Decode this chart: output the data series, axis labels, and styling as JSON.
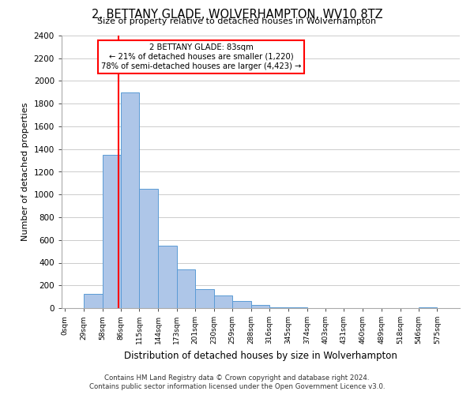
{
  "title": "2, BETTANY GLADE, WOLVERHAMPTON, WV10 8TZ",
  "subtitle": "Size of property relative to detached houses in Wolverhampton",
  "xlabel": "Distribution of detached houses by size in Wolverhampton",
  "ylabel": "Number of detached properties",
  "bar_labels": [
    "0sqm",
    "29sqm",
    "58sqm",
    "86sqm",
    "115sqm",
    "144sqm",
    "173sqm",
    "201sqm",
    "230sqm",
    "259sqm",
    "288sqm",
    "316sqm",
    "345sqm",
    "374sqm",
    "403sqm",
    "431sqm",
    "460sqm",
    "489sqm",
    "518sqm",
    "546sqm",
    "575sqm"
  ],
  "bar_values": [
    0,
    125,
    1350,
    1900,
    1050,
    550,
    340,
    165,
    110,
    60,
    30,
    10,
    5,
    2,
    1,
    0,
    0,
    0,
    0,
    5,
    0
  ],
  "bar_color": "#aec6e8",
  "bar_edge_color": "#5b9bd5",
  "annotation_title": "2 BETTANY GLADE: 83sqm",
  "annotation_line1": "← 21% of detached houses are smaller (1,220)",
  "annotation_line2": "78% of semi-detached houses are larger (4,423) →",
  "property_line_x": 83,
  "ylim": [
    0,
    2400
  ],
  "yticks": [
    0,
    200,
    400,
    600,
    800,
    1000,
    1200,
    1400,
    1600,
    1800,
    2000,
    2200,
    2400
  ],
  "bin_edges": [
    0,
    29,
    58,
    86,
    115,
    144,
    173,
    201,
    230,
    259,
    288,
    316,
    345,
    374,
    403,
    431,
    460,
    489,
    518,
    546,
    575
  ],
  "footer_line1": "Contains HM Land Registry data © Crown copyright and database right 2024.",
  "footer_line2": "Contains public sector information licensed under the Open Government Licence v3.0."
}
